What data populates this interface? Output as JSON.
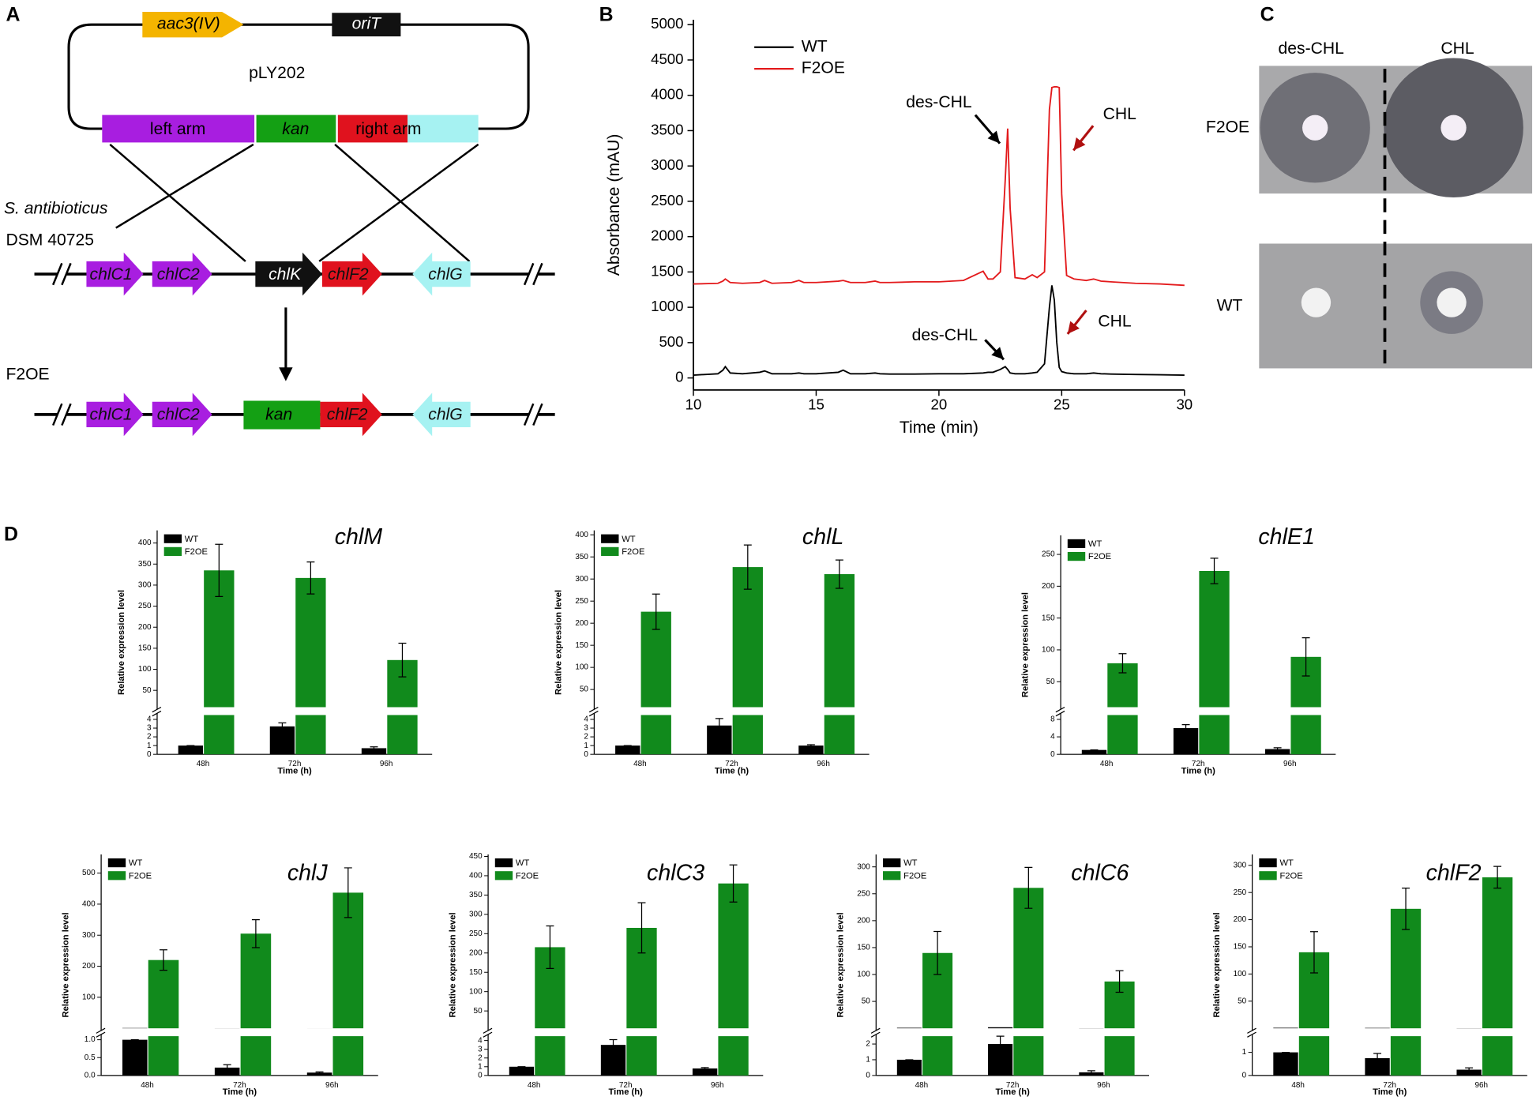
{
  "panel_labels": [
    "A",
    "B",
    "C",
    "D"
  ],
  "diagram": {
    "plasmid": {
      "name": "pLY202",
      "top_genes": [
        "aac3(IV)",
        "oriT"
      ],
      "arms": [
        "left arm",
        "kan",
        "right arm"
      ]
    },
    "strain": [
      "S. antibioticus",
      "DSM 40725"
    ],
    "wild_genes": [
      "chlC1",
      "chlC2",
      "chlK",
      "chlF2",
      "chlG"
    ],
    "mutant_label": "F2OE",
    "mutant_genes": [
      "chlC1",
      "chlC2",
      "kan",
      "chlF2",
      "chlG"
    ]
  },
  "plate": {
    "columns": [
      "des-CHL",
      "CHL"
    ],
    "rows": [
      "F2OE",
      "WT"
    ]
  },
  "chart_data": [
    {
      "type": "line",
      "xlabel": "Time (min)",
      "ylabel": "Absorbance (mAU)",
      "x": [
        10,
        11,
        11.2,
        11.3,
        11.5,
        12,
        12.7,
        12.9,
        13.2,
        14,
        14.3,
        14.5,
        15,
        15.9,
        16.1,
        16.4,
        17,
        17.4,
        17.6,
        18,
        19,
        20,
        21,
        21.8,
        22,
        22.2,
        22.5,
        22.7,
        22.8,
        22.9,
        23.1,
        23.5,
        23.8,
        24,
        24.3,
        24.5,
        24.6,
        24.7,
        24.8,
        24.9,
        25,
        25.2,
        25.5,
        26,
        26.3,
        26.6,
        27,
        28,
        29,
        30
      ],
      "series": [
        {
          "name": "WT",
          "color": "#000000",
          "values": [
            40,
            60,
            110,
            160,
            70,
            60,
            80,
            100,
            60,
            60,
            70,
            60,
            60,
            80,
            110,
            60,
            60,
            70,
            60,
            55,
            55,
            60,
            60,
            70,
            80,
            80,
            120,
            160,
            120,
            70,
            60,
            60,
            70,
            80,
            200,
            1000,
            1310,
            1100,
            500,
            150,
            90,
            70,
            60,
            60,
            70,
            60,
            55,
            50,
            45,
            40
          ]
        },
        {
          "name": "F2OE",
          "color": "#e31a1c",
          "values": [
            1330,
            1340,
            1370,
            1400,
            1350,
            1340,
            1350,
            1380,
            1340,
            1350,
            1380,
            1350,
            1350,
            1370,
            1380,
            1350,
            1350,
            1370,
            1350,
            1350,
            1360,
            1360,
            1380,
            1510,
            1400,
            1400,
            1500,
            2800,
            3530,
            2400,
            1420,
            1400,
            1460,
            1420,
            1500,
            3800,
            4110,
            4120,
            4120,
            4110,
            2600,
            1450,
            1400,
            1380,
            1400,
            1370,
            1360,
            1340,
            1330,
            1310
          ]
        }
      ],
      "xlim": [
        10,
        30
      ],
      "xticks": [
        10,
        15,
        20,
        25,
        30
      ],
      "ylim": [
        -170,
        5070
      ],
      "yticks": [
        0,
        500,
        1000,
        1500,
        2000,
        2500,
        3000,
        3500,
        4000,
        4500,
        5000
      ],
      "annotations": [
        {
          "text": "des-CHL",
          "color": "#000000"
        },
        {
          "text": "CHL",
          "color": "#b01010"
        },
        {
          "text": "des-CHL",
          "color": "#000000"
        },
        {
          "text": "CHL",
          "color": "#b01010"
        }
      ]
    },
    {
      "type": "broken_bar",
      "title": "chlM",
      "xlabel": "Time (h)",
      "ylabel": "Relative expression level",
      "categories": [
        "48h",
        "72h",
        "96h"
      ],
      "series": [
        {
          "name": "WT",
          "color": "#000000",
          "values": [
            1,
            3.2,
            0.7
          ],
          "errors": [
            0,
            0.4,
            0.15
          ]
        },
        {
          "name": "F2OE",
          "color": "#118a1c",
          "values": [
            335,
            317,
            122
          ],
          "errors": [
            62,
            38,
            40
          ]
        }
      ],
      "ylim_lower": [
        0,
        4.5
      ],
      "yticks_lower": [
        0,
        1,
        2,
        3,
        4
      ],
      "ylim_upper": [
        10,
        430
      ],
      "yticks_upper": [
        50,
        100,
        150,
        200,
        250,
        300,
        350,
        400
      ]
    },
    {
      "type": "broken_bar",
      "title": "chlL",
      "xlabel": "Time (h)",
      "ylabel": "Relative expression level",
      "categories": [
        "48h",
        "72h",
        "96h"
      ],
      "series": [
        {
          "name": "WT",
          "color": "#000000",
          "values": [
            1,
            3.3,
            1
          ],
          "errors": [
            0,
            0.8,
            0.1
          ]
        },
        {
          "name": "F2OE",
          "color": "#118a1c",
          "values": [
            226,
            327,
            311
          ],
          "errors": [
            40,
            50,
            32
          ]
        }
      ],
      "ylim_lower": [
        0,
        4.5
      ],
      "yticks_lower": [
        0,
        1,
        2,
        3,
        4
      ],
      "ylim_upper": [
        10,
        410
      ],
      "yticks_upper": [
        50,
        100,
        150,
        200,
        250,
        300,
        350,
        400
      ]
    },
    {
      "type": "broken_bar",
      "title": "chlE1",
      "xlabel": "Time (h)",
      "ylabel": "Relative expression level",
      "categories": [
        "48h",
        "72h",
        "96h"
      ],
      "series": [
        {
          "name": "WT",
          "color": "#000000",
          "values": [
            1,
            6,
            1.2
          ],
          "errors": [
            0,
            0.8,
            0.3
          ]
        },
        {
          "name": "F2OE",
          "color": "#118a1c",
          "values": [
            79,
            224,
            89
          ],
          "errors": [
            15,
            20,
            30
          ]
        }
      ],
      "ylim_lower": [
        0,
        9
      ],
      "yticks_lower": [
        0,
        4,
        8
      ],
      "ylim_upper": [
        10,
        280
      ],
      "yticks_upper": [
        50,
        100,
        150,
        200,
        250
      ]
    },
    {
      "type": "broken_bar",
      "title": "chlJ",
      "xlabel": "Time (h)",
      "ylabel": "Relative expression level",
      "categories": [
        "48h",
        "72h",
        "96h"
      ],
      "series": [
        {
          "name": "WT",
          "color": "#000000",
          "values": [
            1,
            0.22,
            0.08
          ],
          "errors": [
            0,
            0.08,
            0.02
          ]
        },
        {
          "name": "F2OE",
          "color": "#118a1c",
          "values": [
            220,
            305,
            437
          ],
          "errors": [
            33,
            45,
            80
          ]
        }
      ],
      "ylim_lower": [
        0,
        1.1
      ],
      "yticks_lower": [
        {
          "value": 0,
          "label": "0.0"
        },
        {
          "value": 0.5,
          "label": "0.5"
        },
        {
          "value": 1,
          "label": "1.0"
        }
      ],
      "ylim_upper": [
        0,
        560
      ],
      "yticks_upper": [
        100,
        200,
        300,
        400,
        500
      ]
    },
    {
      "type": "broken_bar",
      "title": "chlC3",
      "xlabel": "Time (h)",
      "ylabel": "Relative expression level",
      "categories": [
        "48h",
        "72h",
        "96h"
      ],
      "series": [
        {
          "name": "WT",
          "color": "#000000",
          "values": [
            1,
            3.5,
            0.8
          ],
          "errors": [
            0,
            0.6,
            0.1
          ]
        },
        {
          "name": "F2OE",
          "color": "#118a1c",
          "values": [
            215,
            265,
            380
          ],
          "errors": [
            55,
            65,
            48
          ]
        }
      ],
      "ylim_lower": [
        0,
        4.5
      ],
      "yticks_lower": [
        0,
        1,
        2,
        3,
        4
      ],
      "ylim_upper": [
        5,
        455
      ],
      "yticks_upper": [
        50,
        100,
        150,
        200,
        250,
        300,
        350,
        400,
        450
      ]
    },
    {
      "type": "broken_bar",
      "title": "chlC6",
      "xlabel": "Time (h)",
      "ylabel": "Relative expression level",
      "categories": [
        "48h",
        "72h",
        "96h"
      ],
      "series": [
        {
          "name": "WT",
          "color": "#000000",
          "values": [
            1,
            2,
            0.2
          ],
          "errors": [
            0,
            0.5,
            0.1
          ]
        },
        {
          "name": "F2OE",
          "color": "#118a1c",
          "values": [
            140,
            261,
            87
          ],
          "errors": [
            40,
            38,
            20
          ]
        }
      ],
      "ylim_lower": [
        0,
        2.5
      ],
      "yticks_lower": [
        0,
        1,
        2
      ],
      "ylim_upper": [
        0,
        323
      ],
      "yticks_upper": [
        50,
        100,
        150,
        200,
        250,
        300
      ]
    },
    {
      "type": "broken_bar",
      "title": "chlF2",
      "xlabel": "Time (h)",
      "ylabel": "Relative expression level",
      "categories": [
        "48h",
        "72h",
        "96h"
      ],
      "series": [
        {
          "name": "WT",
          "color": "#000000",
          "values": [
            1,
            0.75,
            0.25
          ],
          "errors": [
            0,
            0.2,
            0.08
          ]
        },
        {
          "name": "F2OE",
          "color": "#118a1c",
          "values": [
            140,
            220,
            278
          ],
          "errors": [
            38,
            38,
            20
          ]
        }
      ],
      "ylim_lower": [
        0,
        1.7
      ],
      "yticks_lower": [
        0,
        1
      ],
      "ylim_upper": [
        0,
        320
      ],
      "yticks_upper": [
        50,
        100,
        150,
        200,
        250,
        300
      ]
    }
  ]
}
